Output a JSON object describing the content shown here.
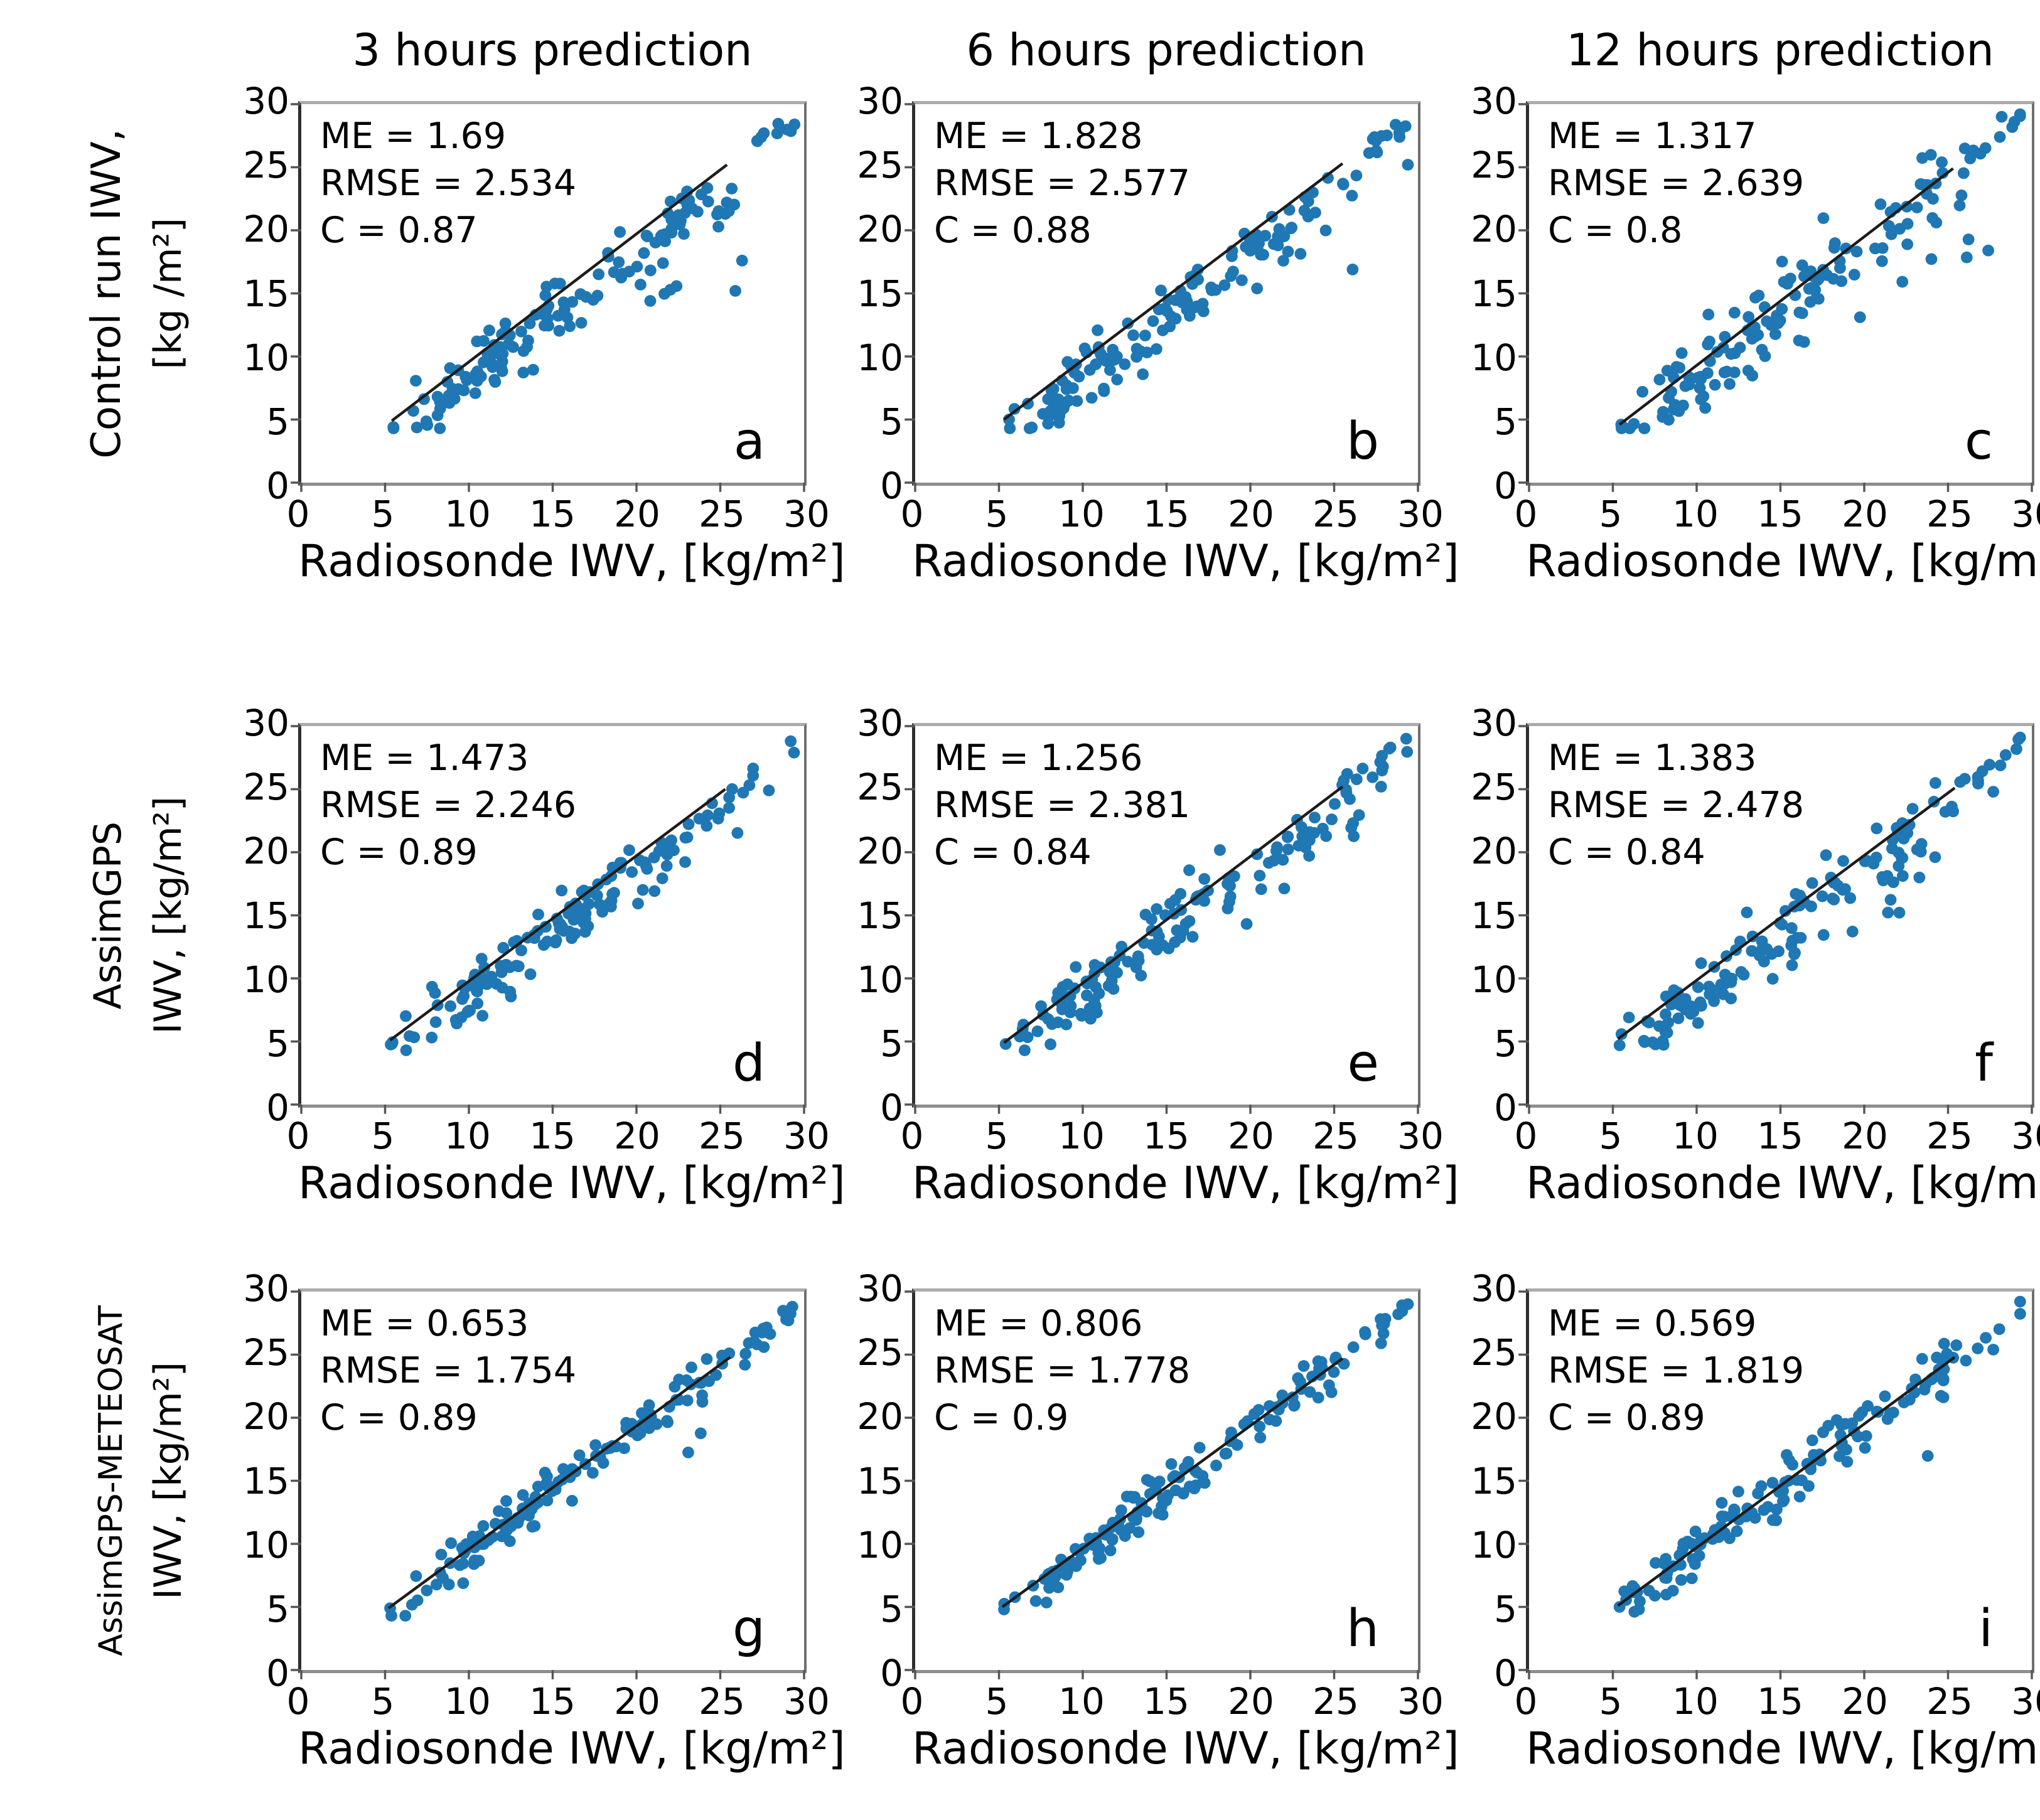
{
  "figure": {
    "column_titles": [
      "3 hours prediction",
      "6 hours prediction",
      "12 hours prediction"
    ],
    "x_axis_label": "Radiosonde IWV, [kg/m²]",
    "axis_ticks": [
      "0",
      "5",
      "10",
      "15",
      "20",
      "25",
      "30"
    ],
    "colors": {
      "dot": "#1f77b4",
      "fit_line": "#1c1c1c",
      "text": "#000000",
      "spine": "#555555"
    }
  },
  "rows": [
    {
      "label_line1": "Control run IWV,",
      "label_line2": "[kg /m²]"
    },
    {
      "label_line1": "AssimGPS",
      "label_line2": "IWV, [kg/m²]"
    },
    {
      "label_line1": "AssimGPS-METEOSAT",
      "label_line2": "IWV, [kg/m²]"
    }
  ],
  "chart_data": {
    "type": "scatter",
    "xlim": [
      0,
      30
    ],
    "ylim": [
      0,
      30
    ],
    "ticks": [
      0,
      5,
      10,
      15,
      20,
      25,
      30
    ],
    "x_label": "Radiosonde IWV, [kg/m²]",
    "grid": false,
    "panels": [
      {
        "letter": "a",
        "row_model": "Control run IWV",
        "column": "3 hours prediction",
        "stats": {
          "ME": 1.69,
          "RMSE": 2.534,
          "C": 0.87
        },
        "stats_lines": [
          "ME = 1.69",
          "RMSE = 2.534",
          "C = 0.87"
        ],
        "fit_line": {
          "x1": 5.4,
          "y1": 4.9,
          "x2": 25.4,
          "y2": 25.2
        },
        "gen": {
          "seed": 101,
          "n": 150,
          "bias": 1.7,
          "spread": 1.5,
          "sag": 0.1,
          "anchors": [
            [
              27.6,
              27.7
            ],
            [
              29.2,
              27.9
            ],
            [
              25.9,
              15.2
            ],
            [
              26.3,
              17.6
            ],
            [
              5.5,
              4.4
            ]
          ]
        }
      },
      {
        "letter": "b",
        "row_model": "Control run IWV",
        "column": "6 hours prediction",
        "stats": {
          "ME": 1.828,
          "RMSE": 2.577,
          "C": 0.88
        },
        "stats_lines": [
          "ME = 1.828",
          "RMSE = 2.577",
          "C = 0.88"
        ],
        "fit_line": {
          "x1": 5.3,
          "y1": 5.0,
          "x2": 25.5,
          "y2": 25.3
        },
        "gen": {
          "seed": 202,
          "n": 150,
          "bias": 1.8,
          "spread": 1.55,
          "sag": 0.1,
          "anchors": [
            [
              28.9,
              27.4
            ],
            [
              29.4,
              25.2
            ],
            [
              26.1,
              16.9
            ],
            [
              5.6,
              5.0
            ]
          ]
        }
      },
      {
        "letter": "c",
        "row_model": "Control run IWV",
        "column": "12 hours prediction",
        "stats": {
          "ME": 1.317,
          "RMSE": 2.639,
          "C": 0.8
        },
        "stats_lines": [
          "ME = 1.317",
          "RMSE = 2.639",
          "C = 0.8"
        ],
        "fit_line": {
          "x1": 5.4,
          "y1": 4.6,
          "x2": 25.3,
          "y2": 24.9
        },
        "gen": {
          "seed": 303,
          "n": 150,
          "bias": 1.3,
          "spread": 1.95,
          "sag": 0.12,
          "anchors": [
            [
              28.2,
              29.0
            ],
            [
              29.3,
              29.2
            ],
            [
              27.4,
              18.4
            ],
            [
              5.5,
              4.6
            ]
          ]
        }
      },
      {
        "letter": "d",
        "row_model": "AssimGPS",
        "column": "3 hours prediction",
        "stats": {
          "ME": 1.473,
          "RMSE": 2.246,
          "C": 0.89
        },
        "stats_lines": [
          "ME = 1.473",
          "RMSE = 2.246",
          "C = 0.89"
        ],
        "fit_line": {
          "x1": 5.3,
          "y1": 5.1,
          "x2": 25.3,
          "y2": 25.0
        },
        "gen": {
          "seed": 404,
          "n": 150,
          "bias": 1.45,
          "spread": 1.3,
          "sag": 0.05,
          "anchors": [
            [
              29.4,
              27.9
            ],
            [
              27.9,
              24.9
            ],
            [
              5.4,
              4.8
            ]
          ]
        }
      },
      {
        "letter": "e",
        "row_model": "AssimGPS",
        "column": "6 hours prediction",
        "stats": {
          "ME": 1.256,
          "RMSE": 2.381,
          "C": 0.84
        },
        "stats_lines": [
          "ME = 1.256",
          "RMSE = 2.381",
          "C = 0.84"
        ],
        "fit_line": {
          "x1": 5.3,
          "y1": 4.9,
          "x2": 25.5,
          "y2": 25.2
        },
        "gen": {
          "seed": 505,
          "n": 150,
          "bias": 1.25,
          "spread": 1.55,
          "sag": 0.07,
          "anchors": [
            [
              29.3,
              29.0
            ],
            [
              27.8,
              25.2
            ],
            [
              5.4,
              4.8
            ]
          ]
        }
      },
      {
        "letter": "f",
        "row_model": "AssimGPS",
        "column": "12 hours prediction",
        "stats": {
          "ME": 1.383,
          "RMSE": 2.478,
          "C": 0.84
        },
        "stats_lines": [
          "ME = 1.383",
          "RMSE = 2.478",
          "C = 0.84"
        ],
        "fit_line": {
          "x1": 5.3,
          "y1": 5.2,
          "x2": 25.4,
          "y2": 25.1
        },
        "gen": {
          "seed": 606,
          "n": 150,
          "bias": 1.4,
          "spread": 1.6,
          "sag": 0.07,
          "anchors": [
            [
              29.3,
              29.1
            ],
            [
              27.7,
              24.8
            ],
            [
              5.4,
              4.7
            ]
          ]
        }
      },
      {
        "letter": "g",
        "row_model": "AssimGPS-METEOSAT",
        "column": "3 hours prediction",
        "stats": {
          "ME": 0.653,
          "RMSE": 1.754,
          "C": 0.89
        },
        "stats_lines": [
          "ME = 0.653",
          "RMSE = 1.754",
          "C = 0.89"
        ],
        "fit_line": {
          "x1": 5.2,
          "y1": 4.9,
          "x2": 25.6,
          "y2": 24.8
        },
        "gen": {
          "seed": 707,
          "n": 150,
          "bias": 0.65,
          "spread": 1.05,
          "sag": 0.03,
          "anchors": [
            [
              29.3,
              28.8
            ],
            [
              27.6,
              25.6
            ],
            [
              5.3,
              4.9
            ]
          ]
        }
      },
      {
        "letter": "h",
        "row_model": "AssimGPS-METEOSAT",
        "column": "6 hours prediction",
        "stats": {
          "ME": 0.806,
          "RMSE": 1.778,
          "C": 0.9
        },
        "stats_lines": [
          "ME = 0.806",
          "RMSE = 1.778",
          "C = 0.9"
        ],
        "fit_line": {
          "x1": 5.2,
          "y1": 5.0,
          "x2": 25.5,
          "y2": 24.7
        },
        "gen": {
          "seed": 808,
          "n": 150,
          "bias": 0.8,
          "spread": 1.1,
          "sag": 0.04,
          "anchors": [
            [
              29.4,
              29.0
            ],
            [
              27.8,
              25.9
            ],
            [
              5.3,
              4.8
            ]
          ]
        }
      },
      {
        "letter": "i",
        "row_model": "AssimGPS-METEOSAT",
        "column": "12 hours prediction",
        "stats": {
          "ME": 0.569,
          "RMSE": 1.819,
          "C": 0.89
        },
        "stats_lines": [
          "ME = 0.569",
          "RMSE = 1.819",
          "C = 0.89"
        ],
        "fit_line": {
          "x1": 5.3,
          "y1": 5.1,
          "x2": 25.4,
          "y2": 24.8
        },
        "gen": {
          "seed": 909,
          "n": 150,
          "bias": 0.55,
          "spread": 1.15,
          "sag": 0.04,
          "anchors": [
            [
              29.3,
              29.2
            ],
            [
              27.7,
              25.4
            ],
            [
              5.4,
              5.0
            ]
          ]
        }
      }
    ]
  }
}
